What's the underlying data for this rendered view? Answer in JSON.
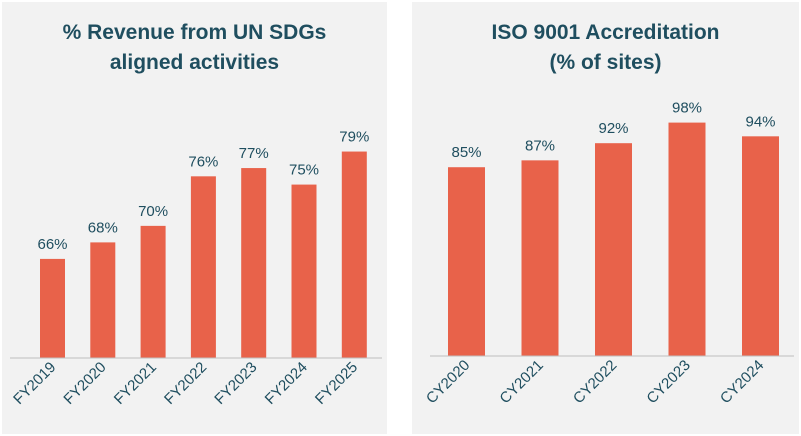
{
  "colors": {
    "bar": "#e8624a",
    "text": "#1f4e5f",
    "panel": "#f2f2f2",
    "axis": "#bfbfbf"
  },
  "chart_data": [
    {
      "type": "bar",
      "title_lines": [
        "% Revenue from UN SDGs",
        "aligned activities"
      ],
      "categories": [
        "FY2019",
        "FY2020",
        "FY2021",
        "FY2022",
        "FY2023",
        "FY2024",
        "FY2025"
      ],
      "values": [
        66,
        68,
        70,
        76,
        77,
        75,
        79
      ],
      "data_labels": [
        "66%",
        "68%",
        "70%",
        "76%",
        "77%",
        "75%",
        "79%"
      ],
      "ylim": [
        54,
        85
      ],
      "xlabel": "",
      "ylabel": "",
      "grid": false,
      "legend": "none"
    },
    {
      "type": "bar",
      "title_lines": [
        "ISO 9001 Accreditation",
        "(% of sites)"
      ],
      "categories": [
        "CY2020",
        "CY2021",
        "CY2022",
        "CY2023",
        "CY2024"
      ],
      "values": [
        85,
        87,
        92,
        98,
        94
      ],
      "data_labels": [
        "85%",
        "87%",
        "92%",
        "98%",
        "94%"
      ],
      "ylim": [
        30,
        104
      ],
      "xlabel": "",
      "ylabel": "",
      "grid": false,
      "legend": "none"
    }
  ]
}
